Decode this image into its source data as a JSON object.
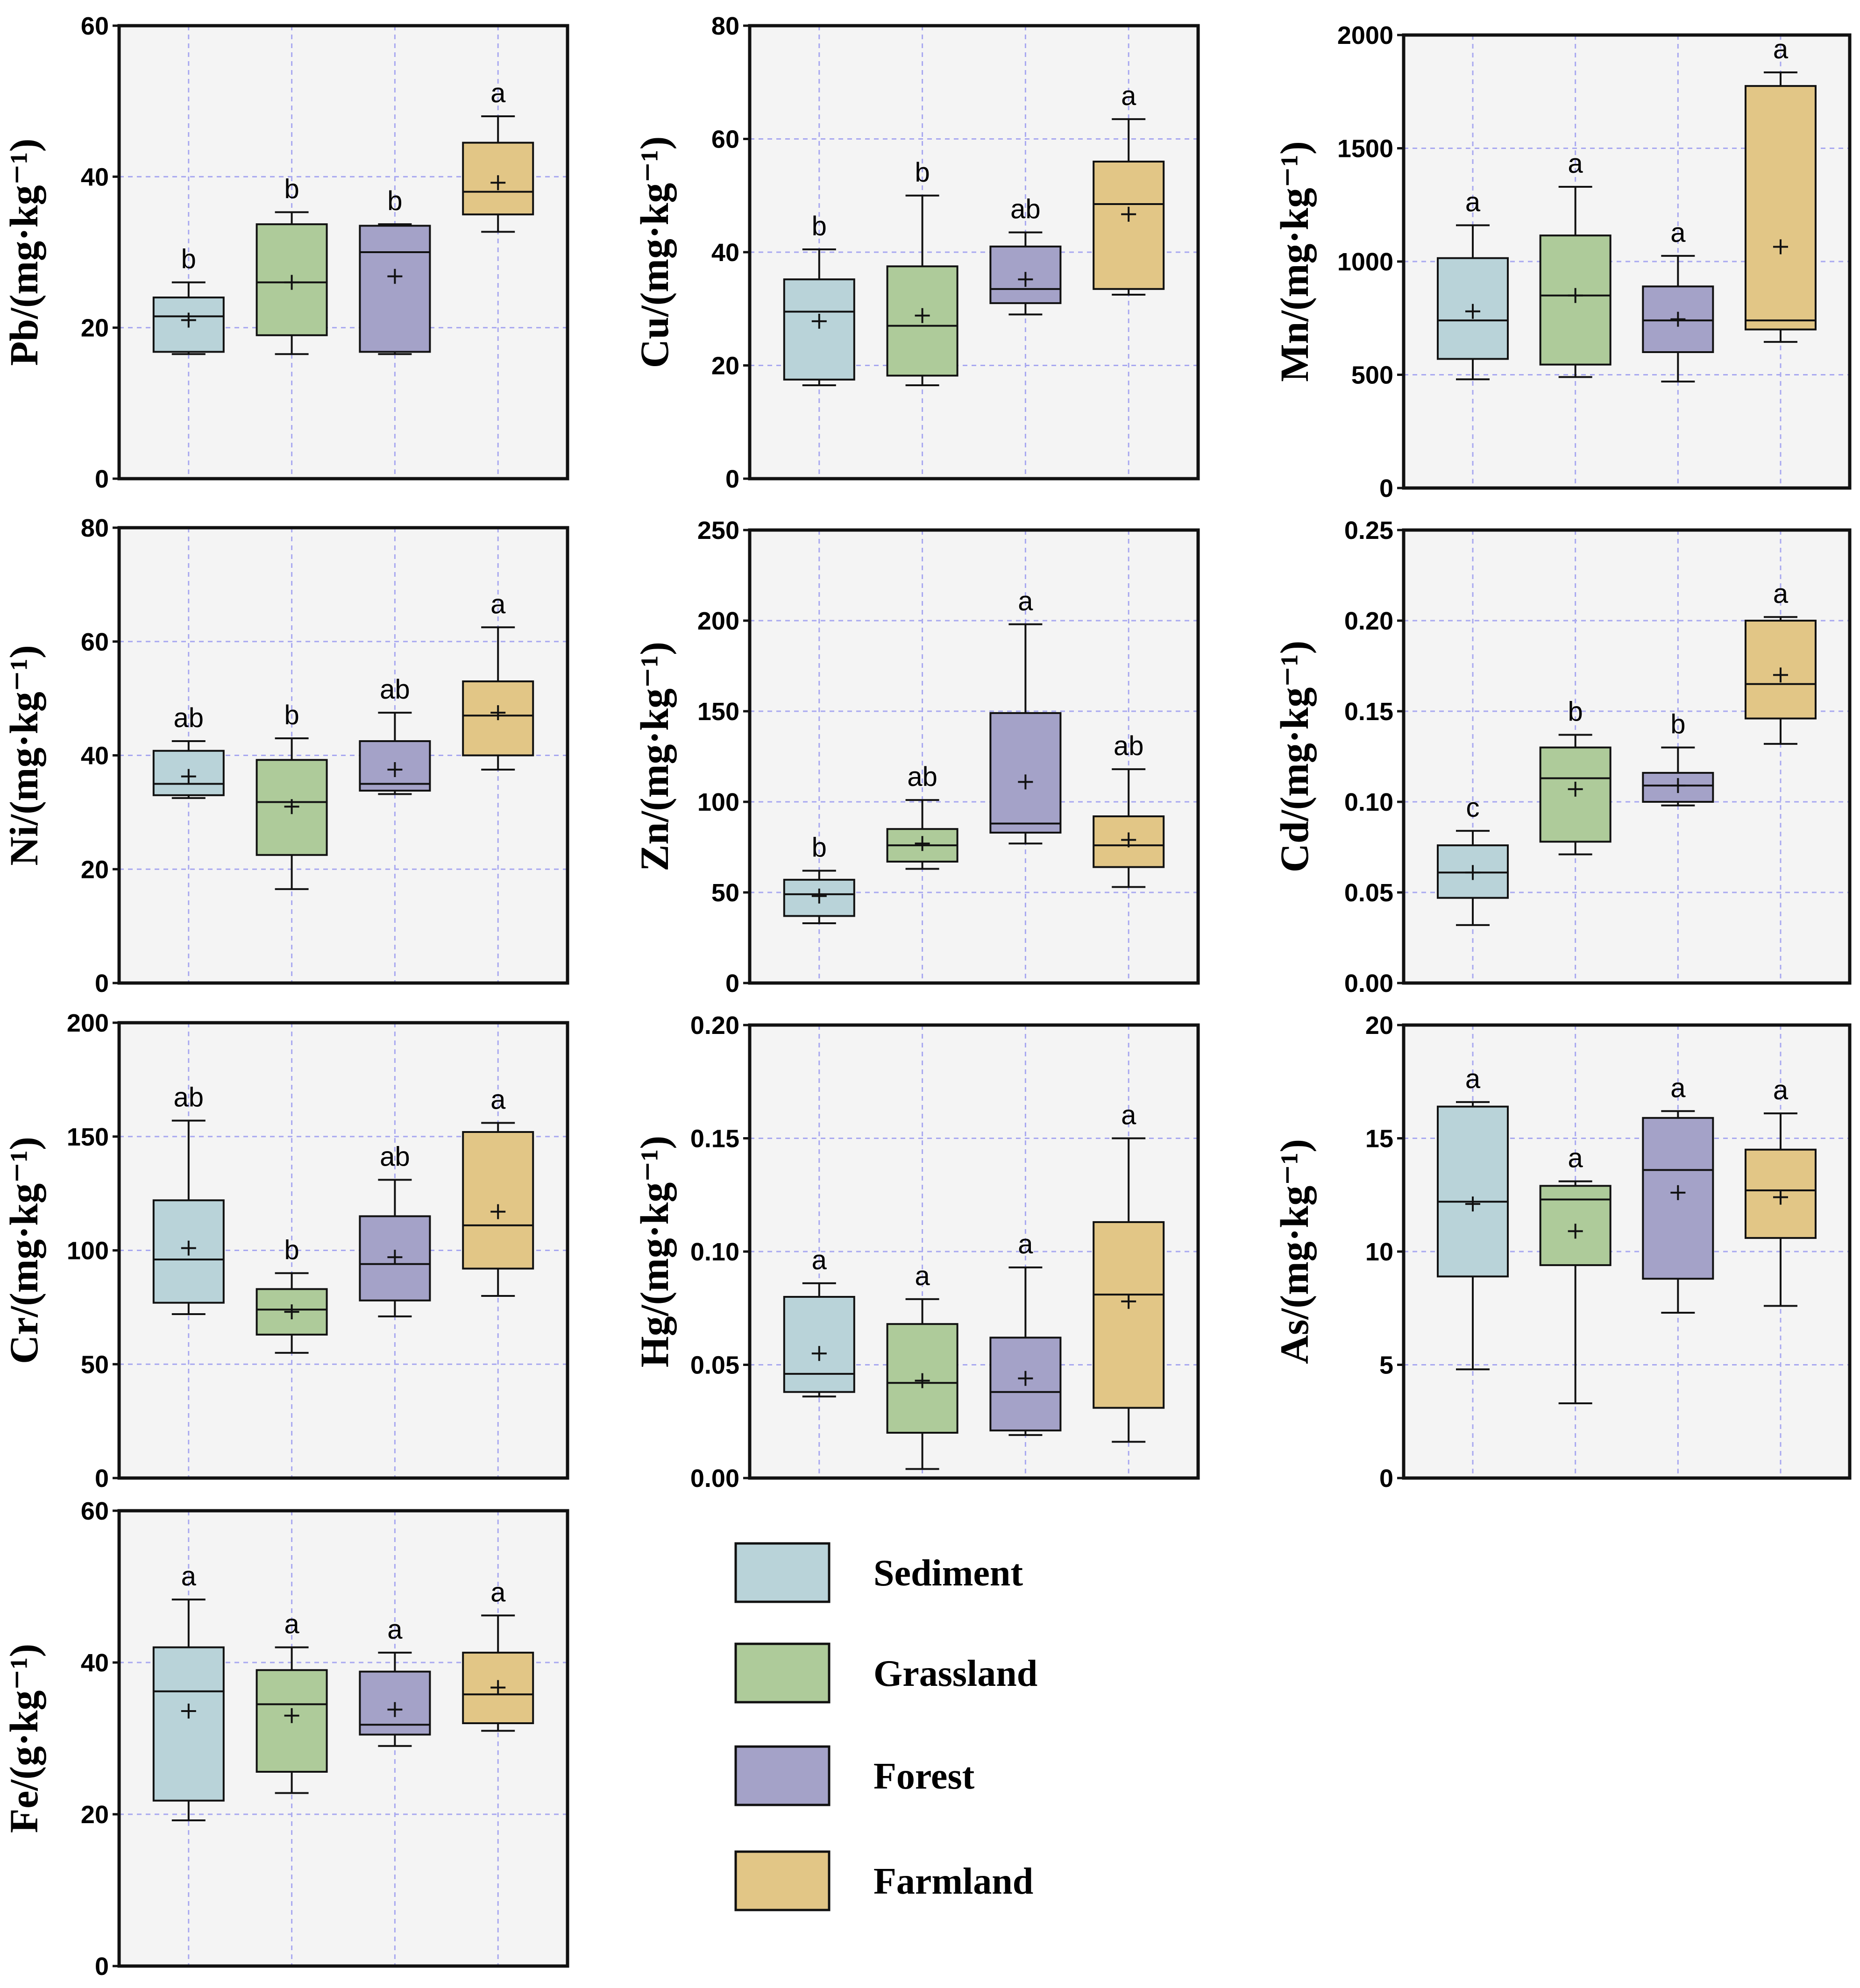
{
  "colors": {
    "Sediment": "#b9d3d9",
    "Grassland": "#aecb9a",
    "Forest": "#a4a2c8",
    "Farmland": "#e2c686",
    "panel_bg": "#f4f4f4",
    "grid": "#a8a8f0"
  },
  "legend": {
    "items": [
      {
        "label": "Sediment",
        "color": "#b9d3d9"
      },
      {
        "label": "Grassland",
        "color": "#aecb9a"
      },
      {
        "label": "Forest",
        "color": "#a4a2c8"
      },
      {
        "label": "Farmland",
        "color": "#e2c686"
      }
    ]
  },
  "chart_data": [
    {
      "type": "box",
      "element": "Pb",
      "ylabel": "Pb/(mg·kg⁻¹)",
      "ylim": [
        0,
        60
      ],
      "ticks": [
        "0",
        "20",
        "40",
        "60"
      ],
      "tick_values": [
        0,
        20,
        40,
        60
      ],
      "categories": [
        "Sediment",
        "Grassland",
        "Forest",
        "Farmland"
      ],
      "series": [
        {
          "name": "Sediment",
          "whisker_low": 16.5,
          "q1": 16.8,
          "median": 21.5,
          "q3": 24,
          "whisker_high": 26,
          "mean": 21,
          "sig": "b"
        },
        {
          "name": "Grassland",
          "whisker_low": 16.5,
          "q1": 19,
          "median": 26,
          "q3": 33.7,
          "whisker_high": 35.3,
          "mean": 26,
          "sig": "b"
        },
        {
          "name": "Forest",
          "whisker_low": 16.5,
          "q1": 16.8,
          "median": 30,
          "q3": 33.5,
          "whisker_high": 33.7,
          "mean": 26.8,
          "sig": "b"
        },
        {
          "name": "Farmland",
          "whisker_low": 32.7,
          "q1": 35,
          "median": 38,
          "q3": 44.5,
          "whisker_high": 48,
          "mean": 39.2,
          "sig": "a"
        }
      ]
    },
    {
      "type": "box",
      "element": "Cu",
      "ylabel": "Cu/(mg·kg⁻¹)",
      "ylim": [
        0,
        80
      ],
      "ticks": [
        "0",
        "20",
        "40",
        "60",
        "80"
      ],
      "tick_values": [
        0,
        20,
        40,
        60,
        80
      ],
      "categories": [
        "Sediment",
        "Grassland",
        "Forest",
        "Farmland"
      ],
      "series": [
        {
          "name": "Sediment",
          "whisker_low": 16.5,
          "q1": 17.5,
          "median": 29.5,
          "q3": 35.2,
          "whisker_high": 40.5,
          "mean": 27.8,
          "sig": "b"
        },
        {
          "name": "Grassland",
          "whisker_low": 16.5,
          "q1": 18.2,
          "median": 27,
          "q3": 37.5,
          "whisker_high": 50,
          "mean": 28.8,
          "sig": "b"
        },
        {
          "name": "Forest",
          "whisker_low": 29,
          "q1": 31,
          "median": 33.5,
          "q3": 41,
          "whisker_high": 43.5,
          "mean": 35.2,
          "sig": "ab"
        },
        {
          "name": "Farmland",
          "whisker_low": 32.5,
          "q1": 33.5,
          "median": 48.5,
          "q3": 56,
          "whisker_high": 63.5,
          "mean": 46.7,
          "sig": "a"
        }
      ]
    },
    {
      "type": "box",
      "element": "Mn",
      "ylabel": "Mn/(mg·kg⁻¹)",
      "ylim": [
        0,
        2000
      ],
      "ticks": [
        "0",
        "500",
        "1000",
        "1500",
        "2000"
      ],
      "tick_values": [
        0,
        500,
        1000,
        1500,
        2000
      ],
      "categories": [
        "Sediment",
        "Grassland",
        "Forest",
        "Farmland"
      ],
      "series": [
        {
          "name": "Sediment",
          "whisker_low": 480,
          "q1": 570,
          "median": 740,
          "q3": 1015,
          "whisker_high": 1160,
          "mean": 780,
          "sig": "a"
        },
        {
          "name": "Grassland",
          "whisker_low": 490,
          "q1": 545,
          "median": 850,
          "q3": 1115,
          "whisker_high": 1330,
          "mean": 850,
          "sig": "a"
        },
        {
          "name": "Forest",
          "whisker_low": 470,
          "q1": 600,
          "median": 740,
          "q3": 890,
          "whisker_high": 1025,
          "mean": 745,
          "sig": "a"
        },
        {
          "name": "Farmland",
          "whisker_low": 645,
          "q1": 700,
          "median": 740,
          "q3": 1775,
          "whisker_high": 1835,
          "mean": 1065,
          "sig": "a"
        }
      ]
    },
    {
      "type": "box",
      "element": "Ni",
      "ylabel": "Ni/(mg·kg⁻¹)",
      "ylim": [
        0,
        80
      ],
      "ticks": [
        "0",
        "20",
        "40",
        "60",
        "80"
      ],
      "tick_values": [
        0,
        20,
        40,
        60,
        80
      ],
      "categories": [
        "Sediment",
        "Grassland",
        "Forest",
        "Farmland"
      ],
      "series": [
        {
          "name": "Sediment",
          "whisker_low": 32.5,
          "q1": 33,
          "median": 35,
          "q3": 40.8,
          "whisker_high": 42.5,
          "mean": 36.3,
          "sig": "ab"
        },
        {
          "name": "Grassland",
          "whisker_low": 16.5,
          "q1": 22.5,
          "median": 31.8,
          "q3": 39.2,
          "whisker_high": 43,
          "mean": 31,
          "sig": "b"
        },
        {
          "name": "Forest",
          "whisker_low": 33.2,
          "q1": 33.8,
          "median": 35,
          "q3": 42.5,
          "whisker_high": 47.5,
          "mean": 37.5,
          "sig": "ab"
        },
        {
          "name": "Farmland",
          "whisker_low": 37.5,
          "q1": 40,
          "median": 47,
          "q3": 53,
          "whisker_high": 62.5,
          "mean": 47.5,
          "sig": "a"
        }
      ]
    },
    {
      "type": "box",
      "element": "Zn",
      "ylabel": "Zn/(mg·kg⁻¹)",
      "ylim": [
        0,
        250
      ],
      "ticks": [
        "0",
        "50",
        "100",
        "150",
        "200",
        "250"
      ],
      "tick_values": [
        0,
        50,
        100,
        150,
        200,
        250
      ],
      "categories": [
        "Sediment",
        "Grassland",
        "Forest",
        "Farmland"
      ],
      "series": [
        {
          "name": "Sediment",
          "whisker_low": 33,
          "q1": 37,
          "median": 49,
          "q3": 57,
          "whisker_high": 62,
          "mean": 48,
          "sig": "b"
        },
        {
          "name": "Grassland",
          "whisker_low": 63,
          "q1": 67,
          "median": 76,
          "q3": 85,
          "whisker_high": 101,
          "mean": 77,
          "sig": "ab"
        },
        {
          "name": "Forest",
          "whisker_low": 77,
          "q1": 83,
          "median": 88,
          "q3": 149,
          "whisker_high": 198,
          "mean": 111,
          "sig": "a"
        },
        {
          "name": "Farmland",
          "whisker_low": 53,
          "q1": 64,
          "median": 76,
          "q3": 92,
          "whisker_high": 118,
          "mean": 79,
          "sig": "ab"
        }
      ]
    },
    {
      "type": "box",
      "element": "Cd",
      "ylabel": "Cd/(mg·kg⁻¹)",
      "ylim": [
        0,
        0.25
      ],
      "ticks": [
        "0.00",
        "0.05",
        "0.10",
        "0.15",
        "0.20",
        "0.25"
      ],
      "tick_values": [
        0,
        0.05,
        0.1,
        0.15,
        0.2,
        0.25
      ],
      "categories": [
        "Sediment",
        "Grassland",
        "Forest",
        "Farmland"
      ],
      "series": [
        {
          "name": "Sediment",
          "whisker_low": 0.032,
          "q1": 0.047,
          "median": 0.061,
          "q3": 0.076,
          "whisker_high": 0.084,
          "mean": 0.061,
          "sig": "c"
        },
        {
          "name": "Grassland",
          "whisker_low": 0.071,
          "q1": 0.078,
          "median": 0.113,
          "q3": 0.13,
          "whisker_high": 0.137,
          "mean": 0.107,
          "sig": "b"
        },
        {
          "name": "Forest",
          "whisker_low": 0.098,
          "q1": 0.1,
          "median": 0.109,
          "q3": 0.116,
          "whisker_high": 0.13,
          "mean": 0.109,
          "sig": "b"
        },
        {
          "name": "Farmland",
          "whisker_low": 0.132,
          "q1": 0.146,
          "median": 0.165,
          "q3": 0.2,
          "whisker_high": 0.202,
          "mean": 0.17,
          "sig": "a"
        }
      ]
    },
    {
      "type": "box",
      "element": "Cr",
      "ylabel": "Cr/(mg·kg⁻¹)",
      "ylim": [
        0,
        200
      ],
      "ticks": [
        "0",
        "50",
        "100",
        "150",
        "200"
      ],
      "tick_values": [
        0,
        50,
        100,
        150,
        200
      ],
      "categories": [
        "Sediment",
        "Grassland",
        "Forest",
        "Farmland"
      ],
      "series": [
        {
          "name": "Sediment",
          "whisker_low": 72,
          "q1": 77,
          "median": 96,
          "q3": 122,
          "whisker_high": 157,
          "mean": 101,
          "sig": "ab"
        },
        {
          "name": "Grassland",
          "whisker_low": 55,
          "q1": 63,
          "median": 74,
          "q3": 83,
          "whisker_high": 90,
          "mean": 73,
          "sig": "b"
        },
        {
          "name": "Forest",
          "whisker_low": 71,
          "q1": 78,
          "median": 94,
          "q3": 115,
          "whisker_high": 131,
          "mean": 97,
          "sig": "ab"
        },
        {
          "name": "Farmland",
          "whisker_low": 80,
          "q1": 92,
          "median": 111,
          "q3": 152,
          "whisker_high": 156,
          "mean": 117,
          "sig": "a"
        }
      ]
    },
    {
      "type": "box",
      "element": "Hg",
      "ylabel": "Hg/(mg·kg⁻¹)",
      "ylim": [
        0,
        0.2
      ],
      "ticks": [
        "0.00",
        "0.05",
        "0.10",
        "0.15",
        "0.20"
      ],
      "tick_values": [
        0,
        0.05,
        0.1,
        0.15,
        0.2
      ],
      "categories": [
        "Sediment",
        "Grassland",
        "Forest",
        "Farmland"
      ],
      "series": [
        {
          "name": "Sediment",
          "whisker_low": 0.036,
          "q1": 0.038,
          "median": 0.046,
          "q3": 0.08,
          "whisker_high": 0.086,
          "mean": 0.055,
          "sig": "a"
        },
        {
          "name": "Grassland",
          "whisker_low": 0.004,
          "q1": 0.02,
          "median": 0.042,
          "q3": 0.068,
          "whisker_high": 0.079,
          "mean": 0.043,
          "sig": "a"
        },
        {
          "name": "Forest",
          "whisker_low": 0.019,
          "q1": 0.021,
          "median": 0.038,
          "q3": 0.062,
          "whisker_high": 0.093,
          "mean": 0.044,
          "sig": "a"
        },
        {
          "name": "Farmland",
          "whisker_low": 0.016,
          "q1": 0.031,
          "median": 0.081,
          "q3": 0.113,
          "whisker_high": 0.15,
          "mean": 0.078,
          "sig": "a"
        }
      ]
    },
    {
      "type": "box",
      "element": "As",
      "ylabel": "As/(mg·kg⁻¹)",
      "ylim": [
        0,
        20
      ],
      "ticks": [
        "0",
        "5",
        "10",
        "15",
        "20"
      ],
      "tick_values": [
        0,
        5,
        10,
        15,
        20
      ],
      "categories": [
        "Sediment",
        "Grassland",
        "Forest",
        "Farmland"
      ],
      "series": [
        {
          "name": "Sediment",
          "whisker_low": 4.8,
          "q1": 8.9,
          "median": 12.2,
          "q3": 16.4,
          "whisker_high": 16.6,
          "mean": 12.1,
          "sig": "a"
        },
        {
          "name": "Grassland",
          "whisker_low": 3.3,
          "q1": 9.4,
          "median": 12.3,
          "q3": 12.9,
          "whisker_high": 13.1,
          "mean": 10.9,
          "sig": "a"
        },
        {
          "name": "Forest",
          "whisker_low": 7.3,
          "q1": 8.8,
          "median": 13.6,
          "q3": 15.9,
          "whisker_high": 16.2,
          "mean": 12.6,
          "sig": "a"
        },
        {
          "name": "Farmland",
          "whisker_low": 7.6,
          "q1": 10.6,
          "median": 12.7,
          "q3": 14.5,
          "whisker_high": 16.1,
          "mean": 12.4,
          "sig": "a"
        }
      ]
    },
    {
      "type": "box",
      "element": "Fe",
      "ylabel": "Fe/(g·kg⁻¹)",
      "ylim": [
        0,
        60
      ],
      "ticks": [
        "0",
        "20",
        "40",
        "60"
      ],
      "tick_values": [
        0,
        20,
        40,
        60
      ],
      "categories": [
        "Sediment",
        "Grassland",
        "Forest",
        "Farmland"
      ],
      "series": [
        {
          "name": "Sediment",
          "whisker_low": 19.2,
          "q1": 21.8,
          "median": 36.2,
          "q3": 42,
          "whisker_high": 48.3,
          "mean": 33.6,
          "sig": "a"
        },
        {
          "name": "Grassland",
          "whisker_low": 22.8,
          "q1": 25.6,
          "median": 34.5,
          "q3": 39,
          "whisker_high": 42,
          "mean": 33,
          "sig": "a"
        },
        {
          "name": "Forest",
          "whisker_low": 29,
          "q1": 30.5,
          "median": 31.8,
          "q3": 38.8,
          "whisker_high": 41.3,
          "mean": 33.8,
          "sig": "a"
        },
        {
          "name": "Farmland",
          "whisker_low": 31,
          "q1": 32,
          "median": 35.8,
          "q3": 41.3,
          "whisker_high": 46.2,
          "mean": 36.7,
          "sig": "a"
        }
      ]
    }
  ]
}
